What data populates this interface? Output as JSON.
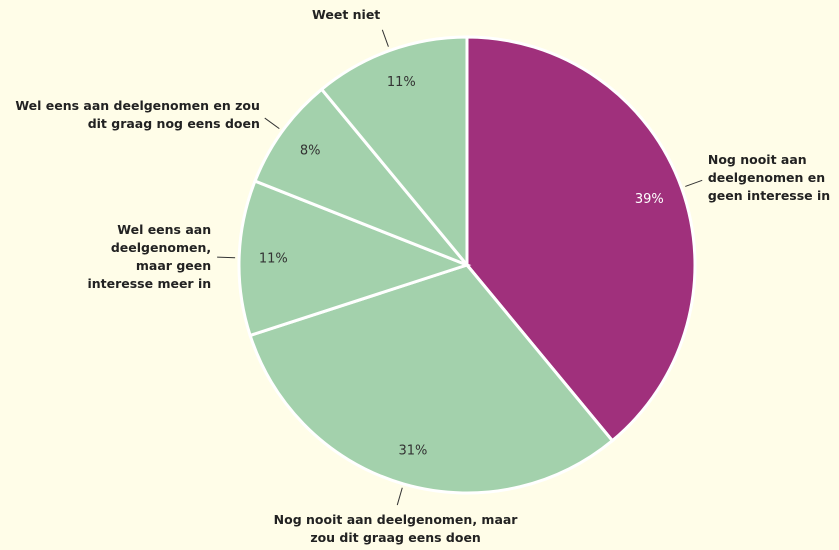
{
  "chart_data": {
    "type": "pie",
    "categories": [
      "Nog nooit aan deelgenomen en geen interesse in",
      "Nog nooit aan deelgenomen, maar zou dit graag eens doen",
      "Wel eens aan deelgenomen, maar geen interesse meer in",
      "Wel eens aan deelgenomen en zou dit graag nog eens doen",
      "Weet niet"
    ],
    "values": [
      39,
      31,
      11,
      8,
      11
    ],
    "value_labels": [
      "39%",
      "31%",
      "11%",
      "8%",
      "11%"
    ],
    "colors": [
      "#a0307c",
      "#a3d1ac",
      "#a3d1ac",
      "#a3d1ac",
      "#a3d1ac"
    ]
  }
}
